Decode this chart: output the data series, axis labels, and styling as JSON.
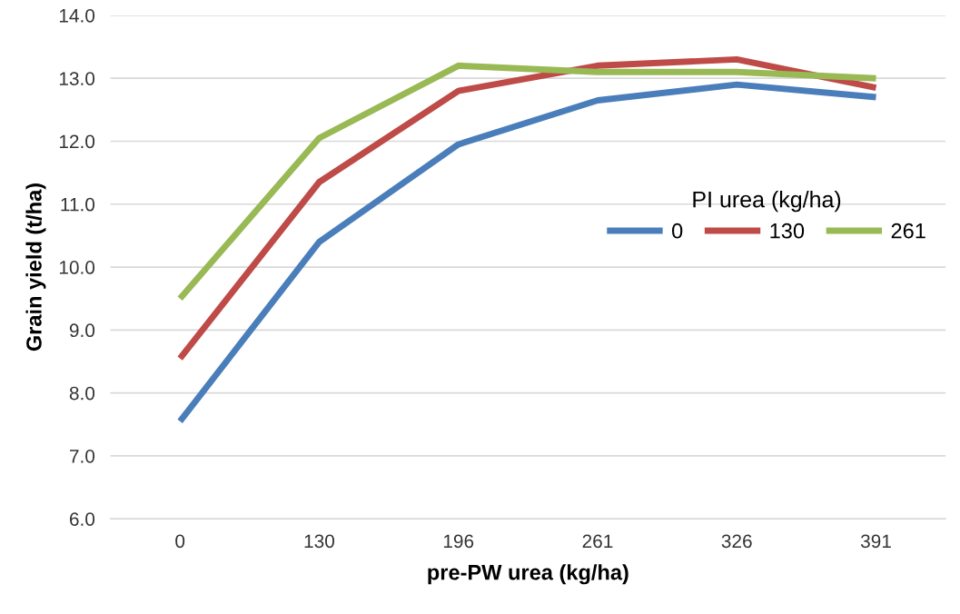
{
  "chart_data": {
    "type": "line",
    "xlabel": "pre-PW urea (kg/ha)",
    "ylabel": "Grain yield (t/ha)",
    "legend_title": "PI urea (kg/ha)",
    "categories": [
      "0",
      "130",
      "196",
      "261",
      "326",
      "391"
    ],
    "series": [
      {
        "name": "0",
        "color": "#4a7ebb",
        "values": [
          7.55,
          10.4,
          11.95,
          12.65,
          12.9,
          12.7
        ]
      },
      {
        "name": "130",
        "color": "#be4b48",
        "values": [
          8.55,
          11.35,
          12.8,
          13.2,
          13.3,
          12.85
        ]
      },
      {
        "name": "261",
        "color": "#98b954",
        "values": [
          9.5,
          12.05,
          13.2,
          13.1,
          13.1,
          13.0
        ]
      }
    ],
    "ylim": [
      6.0,
      14.0
    ],
    "yticks": [
      {
        "value": 6,
        "label": "6.0"
      },
      {
        "value": 7,
        "label": "7.0"
      },
      {
        "value": 8,
        "label": "8.0"
      },
      {
        "value": 9,
        "label": "9.0"
      },
      {
        "value": 10,
        "label": "10.0"
      },
      {
        "value": 11,
        "label": "11.0"
      },
      {
        "value": 12,
        "label": "12.0"
      },
      {
        "value": 13,
        "label": "13.0"
      },
      {
        "value": 14,
        "label": "14.0"
      }
    ],
    "grid": "y",
    "legend": "right",
    "marker": "none",
    "line_style": "solid"
  }
}
